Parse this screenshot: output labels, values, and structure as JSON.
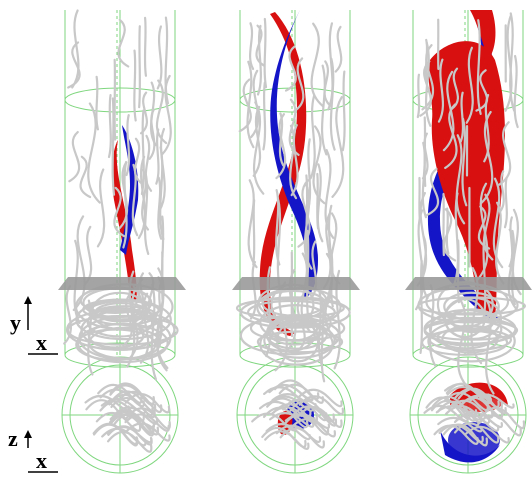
{
  "axes_labels": {
    "top": {
      "vertical": "y",
      "horizontal": "x"
    },
    "bottom": {
      "vertical": "z",
      "horizontal": "x"
    }
  }
}
